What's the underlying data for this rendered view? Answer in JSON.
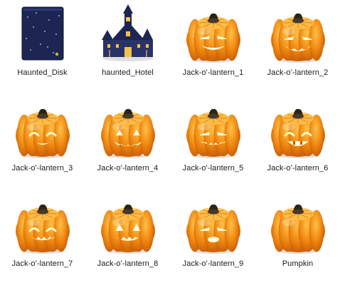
{
  "window": {
    "view": "icon-grid"
  },
  "items": [
    {
      "label": "Haunted_Disk",
      "icon": "haunted-disk-icon",
      "face": "none"
    },
    {
      "label": "haunted_Hotel",
      "icon": "haunted-hotel-icon",
      "face": "none"
    },
    {
      "label": "Jack-o'-lantern_1",
      "icon": "jack-o-lantern-icon",
      "face": "1"
    },
    {
      "label": "Jack-o'-lantern_2",
      "icon": "jack-o-lantern-icon",
      "face": "2"
    },
    {
      "label": "Jack-o'-lantern_3",
      "icon": "jack-o-lantern-icon",
      "face": "3"
    },
    {
      "label": "Jack-o'-lantern_4",
      "icon": "jack-o-lantern-icon",
      "face": "4"
    },
    {
      "label": "Jack-o'-lantern_5",
      "icon": "jack-o-lantern-icon",
      "face": "5"
    },
    {
      "label": "Jack-o'-lantern_6",
      "icon": "jack-o-lantern-icon",
      "face": "6"
    },
    {
      "label": "Jack-o'-lantern_7",
      "icon": "jack-o-lantern-icon",
      "face": "7"
    },
    {
      "label": "Jack-o'-lantern_8",
      "icon": "jack-o-lantern-icon",
      "face": "8"
    },
    {
      "label": "Jack-o'-lantern_9",
      "icon": "jack-o-lantern-icon",
      "face": "9"
    },
    {
      "label": "Pumpkin",
      "icon": "pumpkin-icon",
      "face": "none"
    }
  ],
  "colors": {
    "pumpkin": "#f08a12",
    "pumpkin_light": "#ffc24a",
    "pumpkin_dark": "#c85a05",
    "stem": "#2b2418",
    "face_glow": "#fff3b0",
    "navy": "#1d2552",
    "label": "#1a1a1a"
  }
}
